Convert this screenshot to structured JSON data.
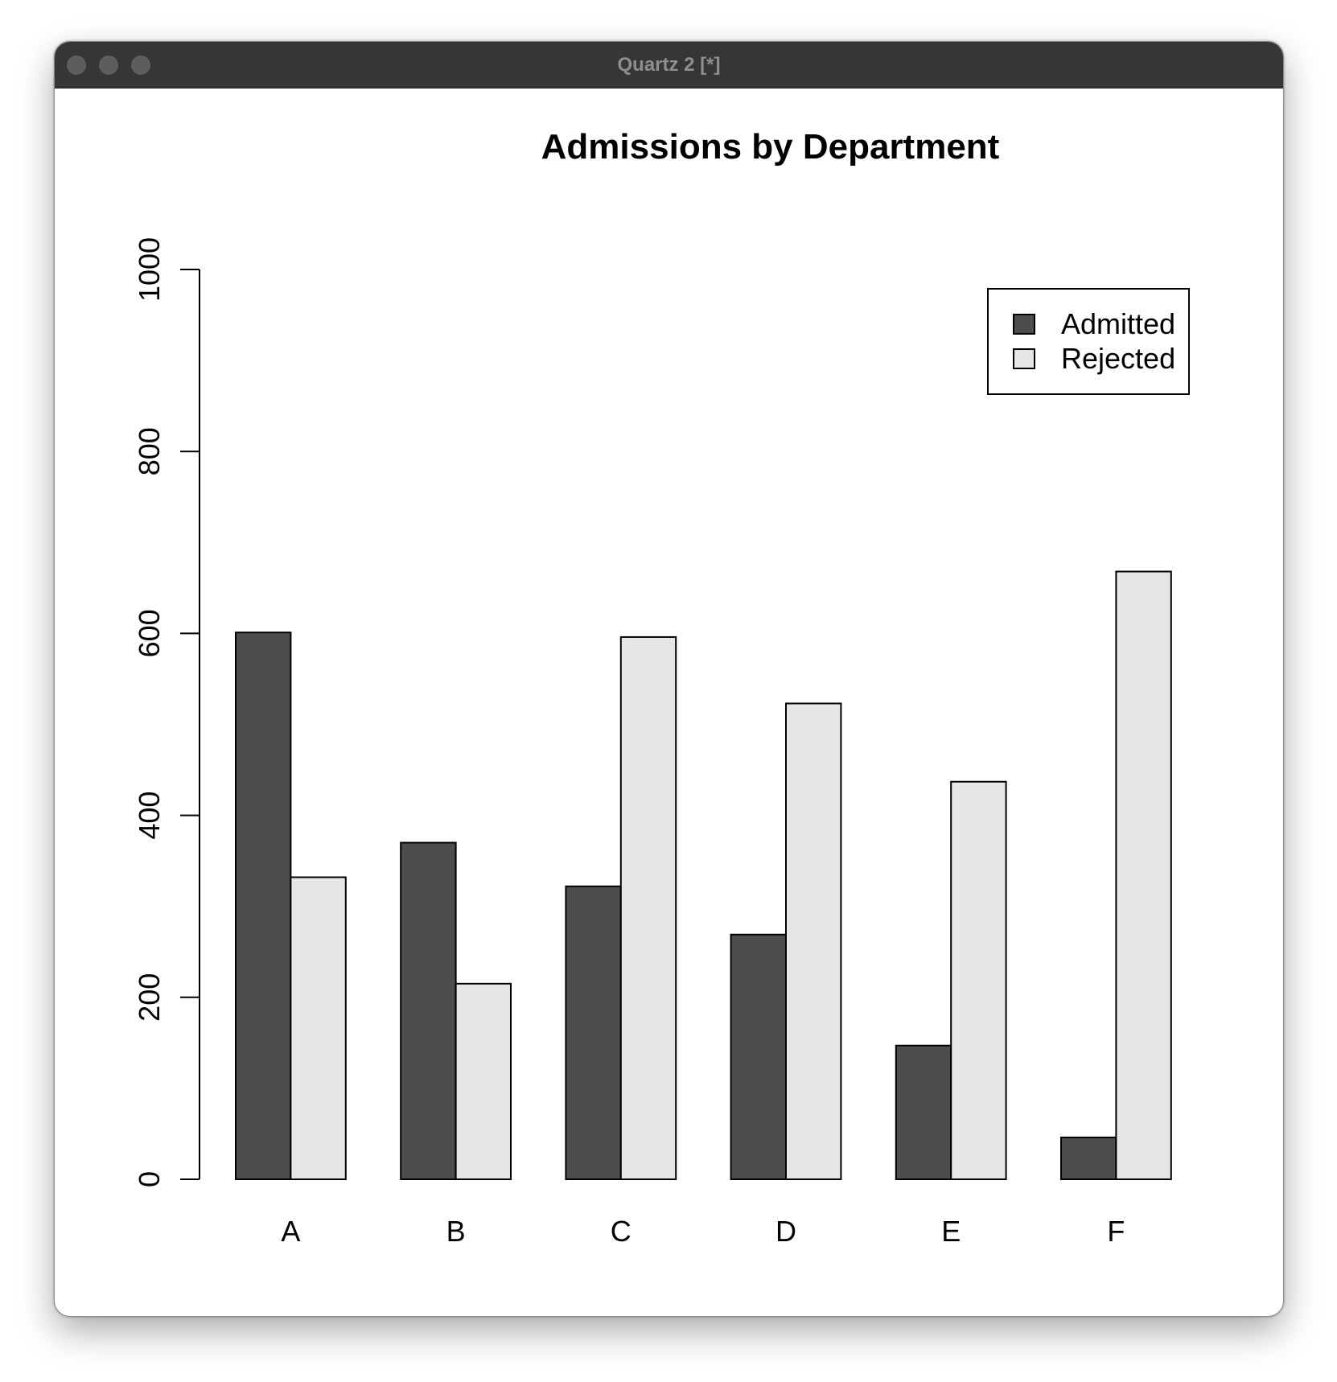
{
  "window": {
    "title": "Quartz 2 [*]"
  },
  "chart_data": {
    "type": "bar",
    "title": "Admissions by Department",
    "xlabel": "",
    "ylabel": "",
    "categories": [
      "A",
      "B",
      "C",
      "D",
      "E",
      "F"
    ],
    "series": [
      {
        "name": "Admitted",
        "values": [
          601,
          370,
          322,
          269,
          147,
          46
        ],
        "color": "#4d4d4d"
      },
      {
        "name": "Rejected",
        "values": [
          332,
          215,
          596,
          523,
          437,
          668
        ],
        "color": "#e6e6e6"
      }
    ],
    "ylim": [
      0,
      1000
    ],
    "yticks": [
      0,
      200,
      400,
      600,
      800,
      1000
    ],
    "grid": false,
    "legend": "top-right"
  }
}
